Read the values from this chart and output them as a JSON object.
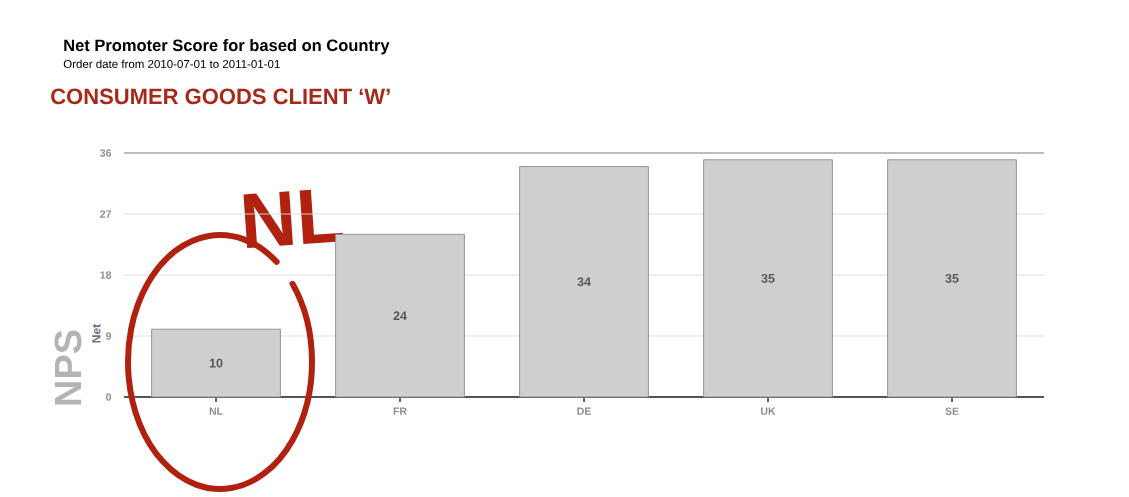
{
  "chart_data": {
    "type": "bar",
    "title": "Net Promoter Score for based on Country",
    "subtitle": "Order date from 2010-07-01 to 2011-01-01",
    "ylabel": "Net",
    "annotations": [
      "CONSUMER GOODS CLIENT ‘W’",
      "NL",
      "NPS"
    ],
    "categories": [
      "NL",
      "FR",
      "DE",
      "UK",
      "SE"
    ],
    "values": [
      10,
      24,
      34,
      35,
      35
    ],
    "color": "#cfcfcf",
    "ylim": [
      0,
      36
    ],
    "yticks": [
      0,
      9,
      18,
      27,
      36
    ],
    "grid": "y",
    "data_labels": true
  }
}
